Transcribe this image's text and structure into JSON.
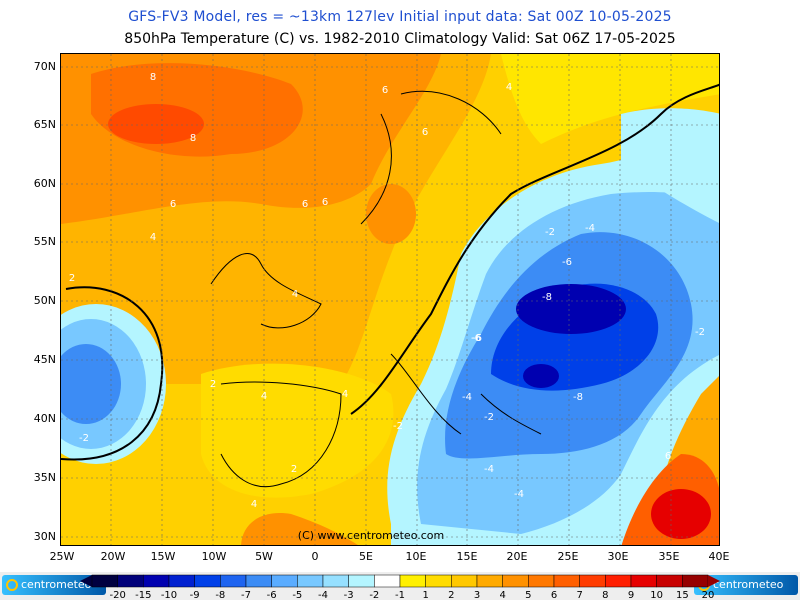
{
  "header": {
    "title_line1": "GFS-FV3 Model, res = ~13km 127lev    Initial input data: Sat 00Z 10-05-2025",
    "title_line2": "850hPa Temperature (C) vs. 1982-2010 Climatology   Valid: Sat 06Z 17-05-2025"
  },
  "map": {
    "lat_labels": [
      "70N",
      "65N",
      "60N",
      "55N",
      "50N",
      "45N",
      "40N",
      "35N",
      "30N"
    ],
    "lon_labels": [
      "25W",
      "20W",
      "15W",
      "10W",
      "5W",
      "0",
      "5E",
      "10E",
      "15E",
      "20E",
      "25E",
      "30E",
      "35E",
      "40E"
    ],
    "contour_labels": [
      "8",
      "6",
      "8",
      "4",
      "6",
      "6",
      "6",
      "4",
      "-4",
      "6",
      "-6",
      "2",
      "-8",
      "4",
      "2",
      "4",
      "-2",
      "2",
      "-6",
      "-6",
      "-4",
      "-8",
      "-2",
      "-2",
      "-2",
      "6",
      "4",
      "-4",
      "4",
      "-2",
      "-4"
    ],
    "watermark": "(C)  www.centrometeo.com"
  },
  "colorbar": {
    "labels": [
      "-20",
      "-15",
      "-10",
      "-9",
      "-8",
      "-7",
      "-6",
      "-5",
      "-4",
      "-3",
      "-2",
      "-1",
      "1",
      "2",
      "3",
      "4",
      "5",
      "6",
      "7",
      "8",
      "9",
      "10",
      "15",
      "20"
    ],
    "colors": [
      "#000040",
      "#00007a",
      "#0000b0",
      "#0020d0",
      "#0040e8",
      "#1e64f0",
      "#3c8cf5",
      "#5aacff",
      "#78c8ff",
      "#96e0ff",
      "#b4f5ff",
      "#ffffff",
      "#fff000",
      "#ffdc00",
      "#ffc800",
      "#ffaa00",
      "#ff9100",
      "#ff7800",
      "#ff5f00",
      "#ff3c00",
      "#ff1e00",
      "#e60000",
      "#c80000",
      "#960000"
    ]
  },
  "footer": {
    "logo_left": "centrometeo",
    "logo_right": "centrometeo"
  }
}
